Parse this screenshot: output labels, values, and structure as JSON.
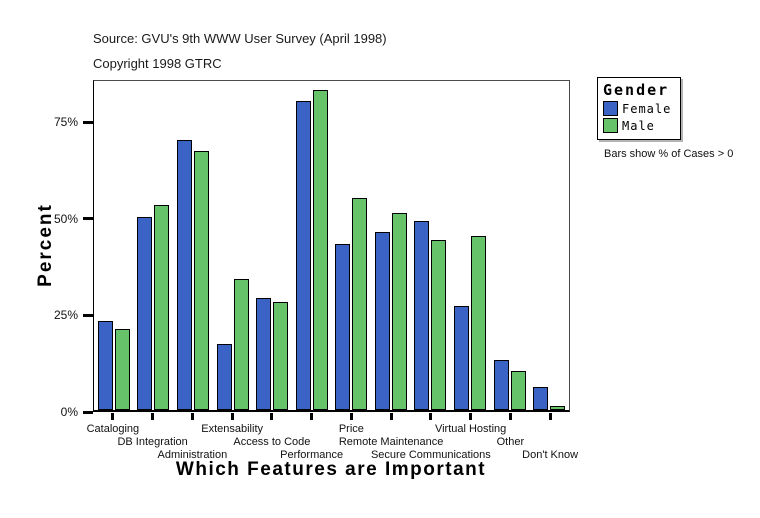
{
  "captions": {
    "source": "Source: GVU's 9th WWW User Survey (April 1998)",
    "copyright": "Copyright 1998 GTRC",
    "note": "Bars show % of Cases > 0"
  },
  "legend": {
    "title": "Gender",
    "items": [
      {
        "label": "Female",
        "color": "#3B63C5"
      },
      {
        "label": "Male",
        "color": "#66C36A"
      }
    ]
  },
  "chart_data": {
    "type": "bar",
    "title": "",
    "xlabel": "Which Features are Important",
    "ylabel": "Percent",
    "categories": [
      "Cataloging",
      "DB Integration",
      "Administration",
      "Extensability",
      "Access to Code",
      "Performance",
      "Price",
      "Remote Maintenance",
      "Secure Communications",
      "Virtual Hosting",
      "Other",
      "Don't Know"
    ],
    "series": [
      {
        "name": "Female",
        "color": "#3B63C5",
        "values": [
          23,
          50,
          70,
          17,
          29,
          80,
          43,
          46,
          49,
          27,
          13,
          6
        ]
      },
      {
        "name": "Male",
        "color": "#66C36A",
        "values": [
          21,
          53,
          67,
          34,
          28,
          83,
          55,
          51,
          44,
          45,
          10,
          1
        ]
      }
    ],
    "y_tick_labels": [
      "0%",
      "25%",
      "50%",
      "75%"
    ],
    "y_tick_values": [
      0,
      25,
      50,
      75
    ],
    "ylim": [
      0,
      86
    ],
    "grid": false,
    "legend_position": "right"
  }
}
